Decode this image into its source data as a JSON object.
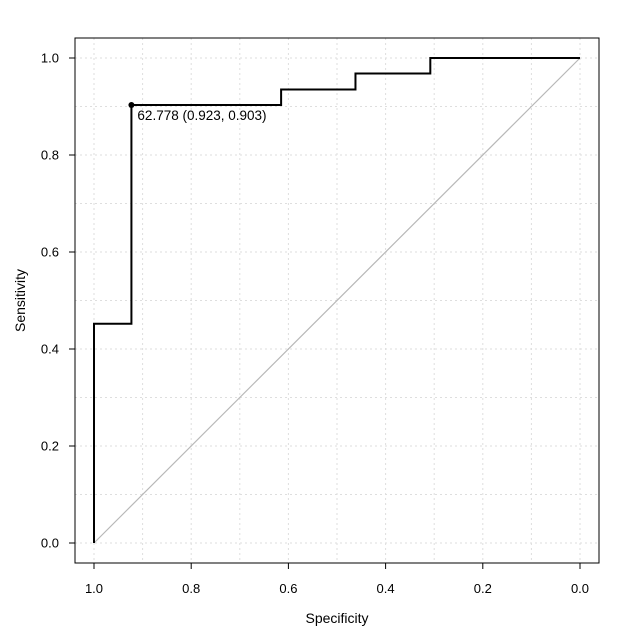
{
  "chart_data": {
    "type": "line",
    "title": "",
    "xlabel": "Specificity",
    "ylabel": "Sensitivity",
    "xlim": [
      1.0,
      0.0
    ],
    "ylim": [
      0.0,
      1.0
    ],
    "x_reversed": true,
    "grid": true,
    "x_ticks": [
      "1.0",
      "0.8",
      "0.6",
      "0.4",
      "0.2",
      "0.0"
    ],
    "y_ticks": [
      "0.0",
      "0.2",
      "0.4",
      "0.6",
      "0.8",
      "1.0"
    ],
    "series": [
      {
        "specificity": [
          1.0,
          1.0,
          0.923,
          0.923,
          0.615,
          0.615,
          0.462,
          0.462,
          0.308,
          0.308,
          0.0
        ],
        "sensitivity": [
          0.0,
          0.452,
          0.452,
          0.903,
          0.903,
          0.935,
          0.935,
          0.968,
          0.968,
          1.0,
          1.0
        ]
      }
    ],
    "reference_line": {
      "from": [
        1.0,
        0.0
      ],
      "to": [
        0.0,
        1.0
      ]
    },
    "best_point": {
      "specificity": 0.923,
      "sensitivity": 0.903,
      "label": "62.778 (0.923, 0.903)"
    }
  }
}
